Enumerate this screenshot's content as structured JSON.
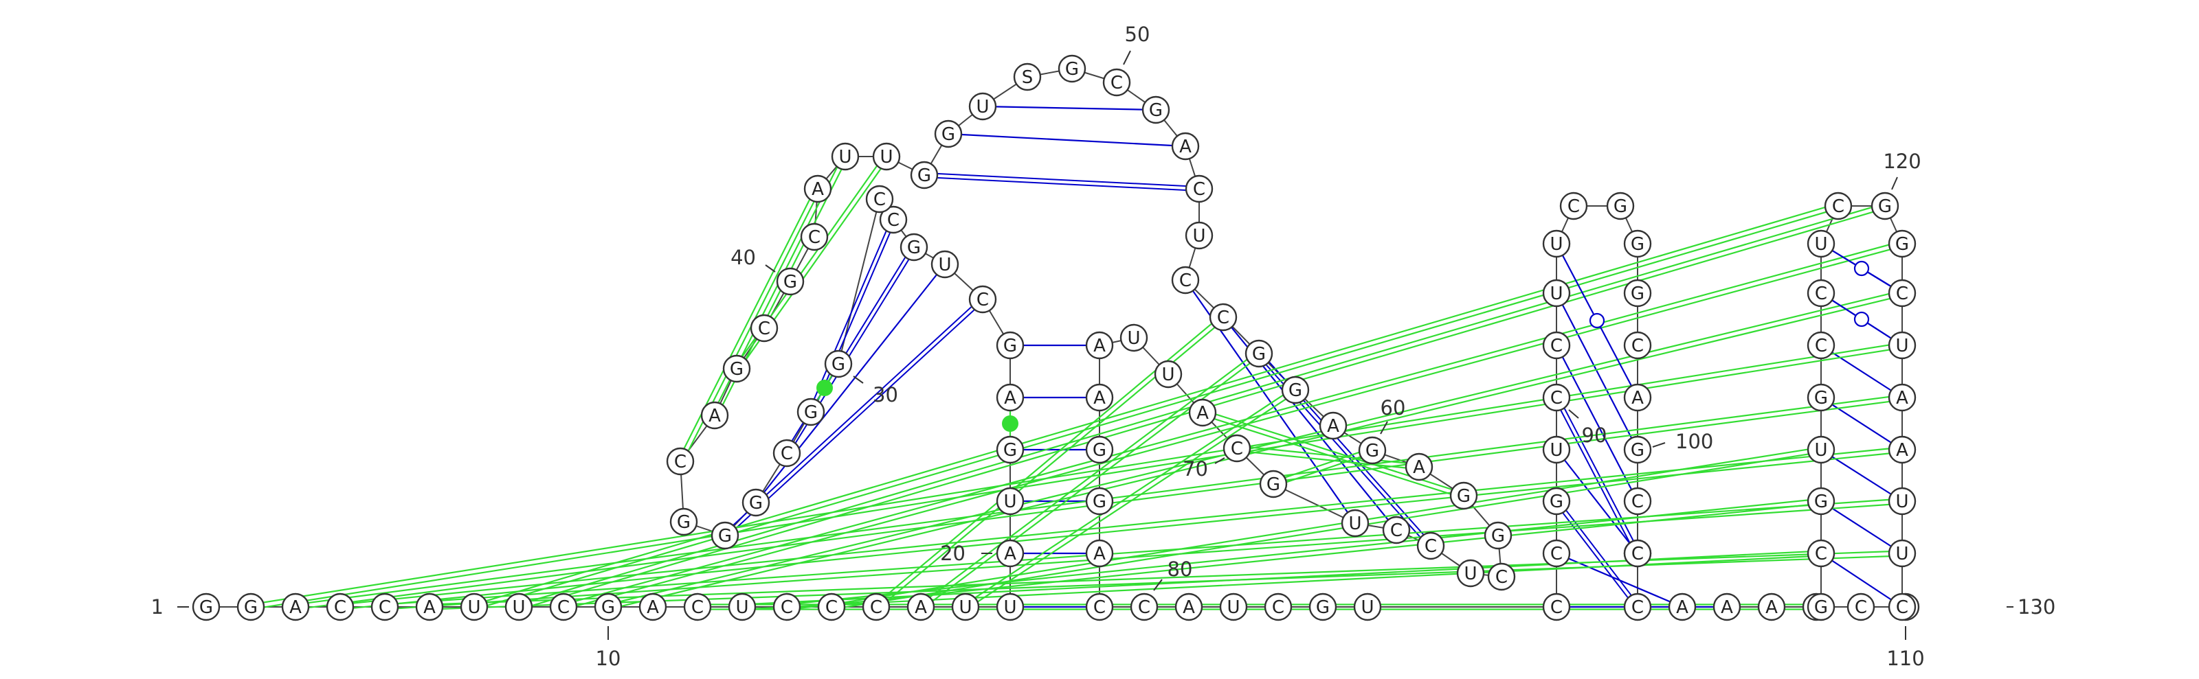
{
  "sequence": "GGACCAUUCGACUCCCAUUAUGAGCUGCCGGCGGGCAGCGCAUUGGUSGCGACUCCGGAGAGGCUCCUGCAUUAAGGACCAUCGUCCGUCCUUCGGGCAGCGCCAAACCUGCGUGCCUCGGCUAAUUC",
  "colors": {
    "canonical_pair": "#0000cc",
    "pseudoknot_pair": "#33dd33",
    "nucleotide_outline": "#333333",
    "backbone": "#444444"
  },
  "position_labels": [
    {
      "position": 1,
      "label": "1"
    },
    {
      "position": 10,
      "label": "10"
    },
    {
      "position": 20,
      "label": "20"
    },
    {
      "position": 30,
      "label": "30"
    },
    {
      "position": 40,
      "label": "40"
    },
    {
      "position": 50,
      "label": "50"
    },
    {
      "position": 60,
      "label": "60"
    },
    {
      "position": 70,
      "label": "70"
    },
    {
      "position": 80,
      "label": "80"
    },
    {
      "position": 90,
      "label": "90"
    },
    {
      "position": 100,
      "label": "100"
    },
    {
      "position": 110,
      "label": "110"
    },
    {
      "position": 120,
      "label": "120"
    },
    {
      "position": 130,
      "label": "130"
    }
  ],
  "canonical_pairs": [
    [
      19,
      79
    ],
    [
      20,
      78
    ],
    [
      21,
      77
    ],
    [
      22,
      76
    ],
    [
      23,
      75
    ],
    [
      24,
      74
    ],
    [
      25,
      34
    ],
    [
      26,
      33
    ],
    [
      27,
      32
    ],
    [
      28,
      31
    ],
    [
      45,
      53
    ],
    [
      46,
      52
    ],
    [
      47,
      51
    ],
    [
      55,
      68
    ],
    [
      56,
      67
    ],
    [
      57,
      66
    ],
    [
      86,
      106
    ],
    [
      87,
      105
    ],
    [
      88,
      104
    ],
    [
      89,
      103
    ],
    [
      90,
      102
    ],
    [
      91,
      101
    ],
    [
      92,
      100
    ],
    [
      112,
      128
    ],
    [
      113,
      127
    ],
    [
      114,
      126
    ],
    [
      115,
      125
    ],
    [
      116,
      124
    ],
    [
      117,
      123
    ],
    [
      118,
      122
    ]
  ],
  "pseudoknot_pairs": [
    [
      2,
      123
    ],
    [
      3,
      124
    ],
    [
      4,
      125
    ],
    [
      5,
      126
    ],
    [
      6,
      127
    ],
    [
      7,
      119
    ],
    [
      8,
      120
    ],
    [
      9,
      121
    ],
    [
      10,
      122
    ],
    [
      12,
      111
    ],
    [
      13,
      112
    ],
    [
      14,
      113
    ],
    [
      15,
      114
    ],
    [
      16,
      56
    ],
    [
      17,
      57
    ],
    [
      18,
      58
    ],
    [
      36,
      42
    ],
    [
      37,
      43
    ],
    [
      38,
      44
    ],
    [
      60,
      69
    ],
    [
      61,
      70
    ],
    [
      62,
      71
    ]
  ],
  "noncanonical_pairs": [
    {
      "pair": [
        30,
        31
      ],
      "symbol": "filled-circle"
    },
    {
      "pair": [
        22,
        23
      ],
      "symbol": "filled-circle"
    },
    {
      "pair": [
        93,
        99
      ],
      "symbol": "open-circle"
    },
    {
      "pair": [
        117,
        123
      ],
      "symbol": "open-circle"
    },
    {
      "pair": [
        118,
        122
      ],
      "symbol": "open-circle"
    }
  ]
}
